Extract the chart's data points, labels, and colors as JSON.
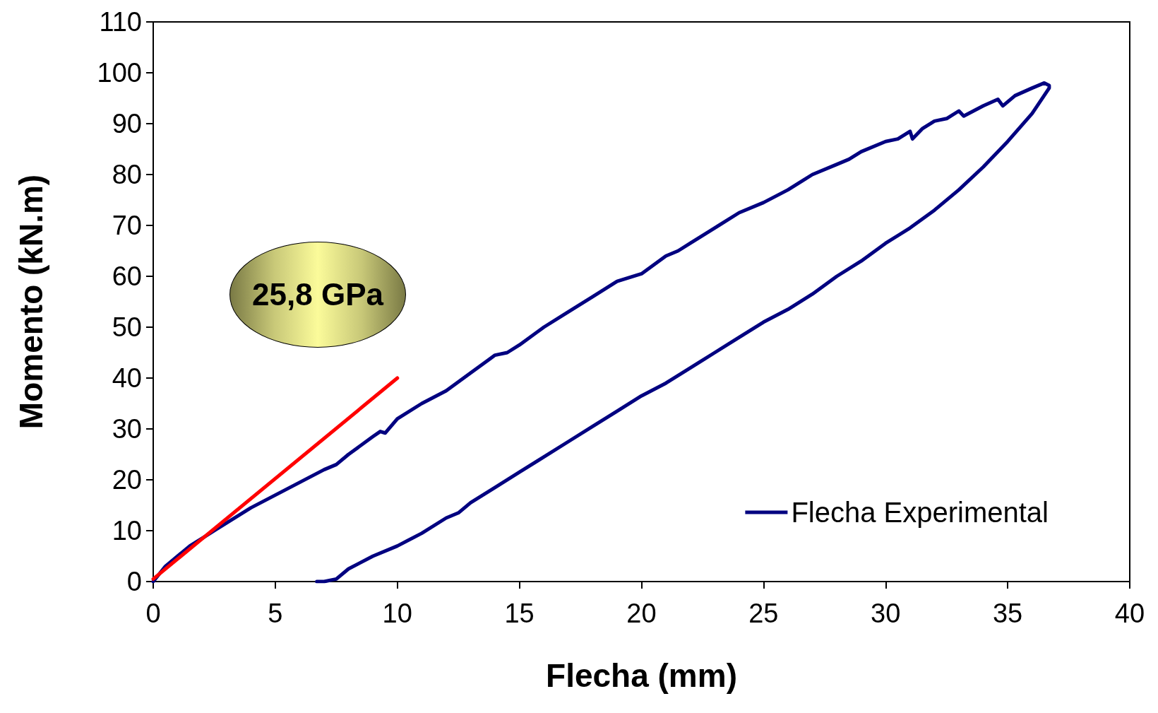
{
  "chart_data": {
    "type": "line",
    "xlabel": "Flecha (mm)",
    "ylabel": "Momento (kN.m)",
    "xlim": [
      0,
      40
    ],
    "xticks": [
      0,
      5,
      10,
      15,
      20,
      25,
      30,
      35,
      40
    ],
    "ylim": [
      0,
      110
    ],
    "yticks": [
      0,
      10,
      20,
      30,
      40,
      50,
      60,
      70,
      80,
      90,
      100,
      110
    ],
    "grid": false,
    "legend": "bottom right",
    "marker": "none",
    "line_style": "solid",
    "annotations": [
      "25,8 GPa"
    ],
    "series": [
      {
        "name": "Flecha Experimental",
        "color": "#000080",
        "x": [
          0,
          0.5,
          1,
          1.5,
          2,
          2.5,
          3,
          3.5,
          4,
          5,
          6,
          7,
          7.5,
          8,
          9,
          9.3,
          9.5,
          10,
          11,
          12,
          13,
          14,
          14.5,
          15,
          16,
          17,
          18,
          19,
          20,
          21,
          21.5,
          22,
          23,
          24,
          25,
          26,
          27,
          28,
          28.5,
          29,
          30,
          30.5,
          31,
          31.1,
          31.5,
          32,
          32.5,
          33,
          33.2,
          34,
          34.6,
          34.8,
          35.3,
          36,
          36.5,
          36.7,
          36.7,
          36,
          35,
          34,
          33,
          32,
          31,
          30,
          29,
          28,
          27,
          26,
          25,
          24,
          23,
          22,
          21,
          20,
          19,
          18,
          17,
          16,
          15,
          14,
          13,
          12.5,
          12,
          11,
          10,
          9,
          8,
          7.5,
          7,
          6.7
        ],
        "values": [
          0,
          3,
          5,
          7,
          8.5,
          10,
          11.5,
          13,
          14.5,
          17,
          19.5,
          22,
          23,
          25,
          28.5,
          29.5,
          29.2,
          32,
          35,
          37.5,
          41,
          44.5,
          45,
          46.5,
          50,
          53,
          56,
          59,
          60.5,
          64,
          65,
          66.5,
          69.5,
          72.5,
          74.5,
          77,
          80,
          82,
          83,
          84.5,
          86.5,
          87,
          88.5,
          87,
          89,
          90.5,
          91,
          92.5,
          91.5,
          93.5,
          94.8,
          93.5,
          95.5,
          97,
          98,
          97.5,
          97,
          92,
          86.5,
          81.5,
          77,
          73,
          69.5,
          66.5,
          63,
          60,
          56.5,
          53.5,
          51,
          48,
          45,
          42,
          39,
          36.5,
          33.5,
          30.5,
          27.5,
          24.5,
          21.5,
          18.5,
          15.5,
          13.5,
          12.5,
          9.5,
          7,
          5,
          2.5,
          0.5,
          0,
          0
        ]
      },
      {
        "type": "line",
        "color": "#ff0000",
        "x": [
          0,
          10
        ],
        "values": [
          0.5,
          40
        ]
      }
    ]
  }
}
